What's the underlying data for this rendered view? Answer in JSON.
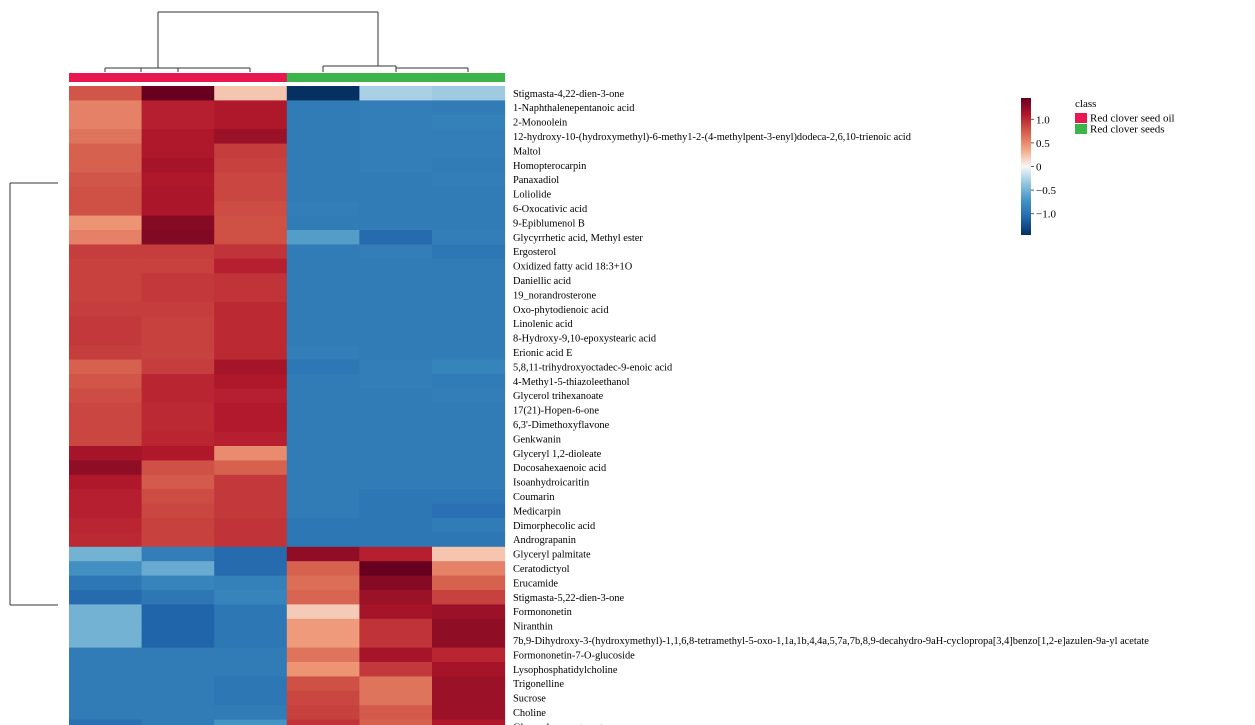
{
  "chart_data": {
    "type": "heatmap",
    "columns": [
      {
        "class_index": 0
      },
      {
        "class_index": 0
      },
      {
        "class_index": 0
      },
      {
        "class_index": 1
      },
      {
        "class_index": 1
      },
      {
        "class_index": 1
      }
    ],
    "rows": [
      {
        "name": "Stigmasta-4,22-dien-3-one",
        "values": [
          0.78,
          1.45,
          0.22,
          -1.45,
          -0.28,
          -0.32
        ]
      },
      {
        "name": "1-Naphthalenepentanoic acid",
        "values": [
          0.55,
          1.05,
          1.1,
          -0.92,
          -0.9,
          -0.92
        ]
      },
      {
        "name": "2-Monoolein",
        "values": [
          0.55,
          1.05,
          1.1,
          -0.92,
          -0.9,
          -0.88
        ]
      },
      {
        "name": "12-hydroxy-10-(hydroxymethyl)-6-methy1-2-(4-methylpent-3-enyl)dodeca-2,6,10-trienoic acid",
        "values": [
          0.62,
          1.1,
          1.2,
          -0.92,
          -0.9,
          -0.9
        ]
      },
      {
        "name": "Maltol",
        "values": [
          0.72,
          1.1,
          0.9,
          -0.92,
          -0.9,
          -0.9
        ]
      },
      {
        "name": "Homopterocarpin",
        "values": [
          0.72,
          1.15,
          0.88,
          -0.92,
          -0.9,
          -0.92
        ]
      },
      {
        "name": "Panaxadiol",
        "values": [
          0.78,
          1.1,
          0.85,
          -0.92,
          -0.92,
          -0.9
        ]
      },
      {
        "name": "Loliolide",
        "values": [
          0.8,
          1.12,
          0.85,
          -0.92,
          -0.92,
          -0.92
        ]
      },
      {
        "name": "6-Oxocativic acid",
        "values": [
          0.8,
          1.12,
          0.82,
          -0.9,
          -0.92,
          -0.92
        ]
      },
      {
        "name": "9-Epiblumenol B",
        "values": [
          0.45,
          1.3,
          0.8,
          -0.92,
          -0.92,
          -0.92
        ]
      },
      {
        "name": "Glycyrrhetic acid, Methyl ester",
        "values": [
          0.55,
          1.32,
          0.8,
          -0.65,
          -1.05,
          -0.9
        ]
      },
      {
        "name": "Ergosterol",
        "values": [
          0.9,
          0.9,
          0.95,
          -0.92,
          -0.9,
          -0.95
        ]
      },
      {
        "name": "Oxidized fatty acid 18:3+1O",
        "values": [
          0.88,
          0.88,
          1.05,
          -0.92,
          -0.92,
          -0.92
        ]
      },
      {
        "name": "Daniellic acid",
        "values": [
          0.88,
          0.92,
          0.95,
          -0.92,
          -0.92,
          -0.92
        ]
      },
      {
        "name": "19_norandrosterone",
        "values": [
          0.88,
          0.92,
          0.95,
          -0.92,
          -0.92,
          -0.92
        ]
      },
      {
        "name": "Oxo-phytodienoic acid",
        "values": [
          0.9,
          0.9,
          1.0,
          -0.92,
          -0.92,
          -0.92
        ]
      },
      {
        "name": "Linolenic acid",
        "values": [
          0.92,
          0.88,
          1.0,
          -0.92,
          -0.92,
          -0.92
        ]
      },
      {
        "name": "8-Hydroxy-9,10-epoxystearic acid",
        "values": [
          0.92,
          0.88,
          1.0,
          -0.92,
          -0.92,
          -0.92
        ]
      },
      {
        "name": "Erionic acid E",
        "values": [
          0.9,
          0.88,
          1.0,
          -0.9,
          -0.92,
          -0.92
        ]
      },
      {
        "name": "5,8,11-trihydroxyoctadec-9-enoic acid",
        "values": [
          0.72,
          0.9,
          1.15,
          -0.95,
          -0.9,
          -0.85
        ]
      },
      {
        "name": "4-Methy1-5-thiazoleethanol",
        "values": [
          0.78,
          1.02,
          1.1,
          -0.92,
          -0.9,
          -0.92
        ]
      },
      {
        "name": "Glycerol trihexanoate",
        "values": [
          0.82,
          1.02,
          1.05,
          -0.92,
          -0.92,
          -0.9
        ]
      },
      {
        "name": "17(21)-Hopen-6-one",
        "values": [
          0.85,
          1.0,
          1.08,
          -0.92,
          -0.92,
          -0.92
        ]
      },
      {
        "name": "6,3'-Dimethoxyflavone",
        "values": [
          0.85,
          1.0,
          1.08,
          -0.92,
          -0.92,
          -0.92
        ]
      },
      {
        "name": "Genkwanin",
        "values": [
          0.85,
          1.02,
          1.05,
          -0.92,
          -0.92,
          -0.92
        ]
      },
      {
        "name": "Glyceryl 1,2-dioleate",
        "values": [
          1.15,
          1.1,
          0.5,
          -0.92,
          -0.92,
          -0.92
        ]
      },
      {
        "name": "Docosahexaenoic acid",
        "values": [
          1.25,
          0.8,
          0.72,
          -0.92,
          -0.92,
          -0.92
        ]
      },
      {
        "name": "Isoanhydroicaritin",
        "values": [
          1.1,
          0.75,
          0.92,
          -0.92,
          -0.92,
          -0.92
        ]
      },
      {
        "name": "Coumarin",
        "values": [
          1.05,
          0.82,
          0.92,
          -0.92,
          -0.95,
          -0.95
        ]
      },
      {
        "name": "Medicarpin",
        "values": [
          1.05,
          0.85,
          0.92,
          -0.92,
          -0.95,
          -1.0
        ]
      },
      {
        "name": "Dimorphecolic acid",
        "values": [
          1.02,
          0.88,
          0.95,
          -0.95,
          -0.95,
          -0.92
        ]
      },
      {
        "name": "Andrograpanin",
        "values": [
          1.0,
          0.88,
          0.95,
          -0.95,
          -0.95,
          -0.95
        ]
      },
      {
        "name": "Glyceryl palmitate",
        "values": [
          -0.5,
          -0.9,
          -1.05,
          1.25,
          1.05,
          0.22
        ]
      },
      {
        "name": "Ceratodictyol",
        "values": [
          -0.75,
          -0.55,
          -1.05,
          0.72,
          1.45,
          0.55
        ]
      },
      {
        "name": "Erucamide",
        "values": [
          -0.95,
          -0.85,
          -0.88,
          0.65,
          1.3,
          0.72
        ]
      },
      {
        "name": "Stigmasta-5,22-dien-3-one",
        "values": [
          -1.05,
          -0.95,
          -0.85,
          0.7,
          1.2,
          0.88
        ]
      },
      {
        "name": "Formononetin",
        "values": [
          -0.5,
          -1.1,
          -0.95,
          0.2,
          1.15,
          1.2
        ]
      },
      {
        "name": "Niranthin",
        "values": [
          -0.5,
          -1.1,
          -0.95,
          0.42,
          0.95,
          1.25
        ]
      },
      {
        "name": "7b,9-Dihydroxy-3-(hydroxymethyl)-1,1,6,8-tetramethyl-5-oxo-1,1a,1b,4,4a,5,7a,7b,8,9-decahydro-9aH-cyclopropa[3,4]benzo[1,2-e]azulen-9a-yl acetate",
        "values": [
          -0.5,
          -1.1,
          -0.95,
          0.42,
          0.95,
          1.25
        ]
      },
      {
        "name": "Formononetin-7-O-glucoside",
        "values": [
          -0.92,
          -0.92,
          -0.92,
          0.62,
          1.15,
          1.02
        ]
      },
      {
        "name": "Lysophosphatidylcholine",
        "values": [
          -0.92,
          -0.92,
          -0.92,
          0.45,
          0.92,
          1.15
        ]
      },
      {
        "name": "Trigonelline",
        "values": [
          -0.92,
          -0.92,
          -0.95,
          0.8,
          0.62,
          1.2
        ]
      },
      {
        "name": "Sucrose",
        "values": [
          -0.92,
          -0.92,
          -0.95,
          0.85,
          0.62,
          1.2
        ]
      },
      {
        "name": "Choline",
        "values": [
          -0.92,
          -0.92,
          -0.92,
          0.88,
          0.75,
          1.2
        ]
      },
      {
        "name": "Glyceryl monostearate",
        "values": [
          -1.0,
          -0.92,
          -0.72,
          0.95,
          0.72,
          1.1
        ]
      }
    ],
    "color_scale": {
      "ticks": [
        "1.0",
        "0.5",
        "0",
        "−0.5",
        "−1.0"
      ],
      "tick_values": [
        1.0,
        0.5,
        0.0,
        -0.5,
        -1.0
      ],
      "range": [
        -1.45,
        1.45
      ],
      "stops": [
        "#053061",
        "#2166ac",
        "#4393c3",
        "#92c5de",
        "#f7f7f7",
        "#f4a582",
        "#d6604d",
        "#b2182b",
        "#67001f"
      ]
    },
    "legend": {
      "title": "class",
      "entries": [
        {
          "label": "Red clover seed oil",
          "color": "#e8174f"
        },
        {
          "label": "Red clover seeds",
          "color": "#3bb54a"
        }
      ]
    },
    "dendrograms": {
      "rows": "two main clusters",
      "columns": "two main clusters"
    },
    "legend_position": "top-right",
    "grid": false
  }
}
